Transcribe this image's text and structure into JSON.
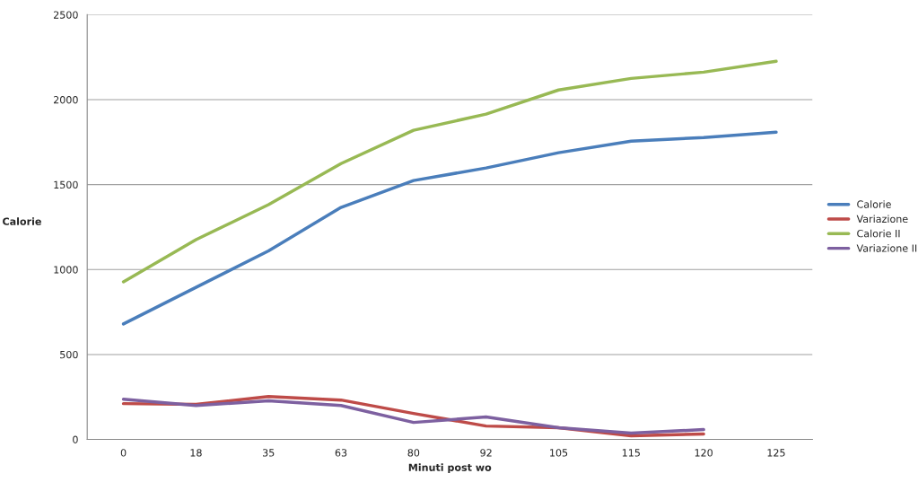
{
  "chart_data": {
    "type": "line",
    "xlabel": "Minuti post wo",
    "ylabel": "Calorie",
    "categories": [
      "0",
      "18",
      "35",
      "63",
      "80",
      "92",
      "105",
      "115",
      "120",
      "125"
    ],
    "series": [
      {
        "name": "Calorie",
        "color": "#4a7ebb",
        "values": [
          680,
          895,
          1110,
          1366,
          1524,
          1598,
          1688,
          1756,
          1777,
          1809
        ]
      },
      {
        "name": "Variazione",
        "color": "#be4b48",
        "values": [
          211,
          206,
          253,
          232,
          153,
          79,
          69,
          21,
          32,
          null
        ]
      },
      {
        "name": "Calorie II",
        "color": "#98b954",
        "values": [
          928,
          1176,
          1382,
          1624,
          1820,
          1915,
          2057,
          2125,
          2162,
          2226
        ]
      },
      {
        "name": "Variazione II",
        "color": "#7d60a0",
        "values": [
          237,
          200,
          227,
          200,
          100,
          132,
          69,
          37,
          58,
          null
        ]
      }
    ],
    "ylim": [
      0,
      2500
    ],
    "yticks": [
      0,
      500,
      1000,
      1500,
      2000,
      2500
    ],
    "grid": "y",
    "legend": "right",
    "line_style": "solid",
    "marker": "none"
  }
}
